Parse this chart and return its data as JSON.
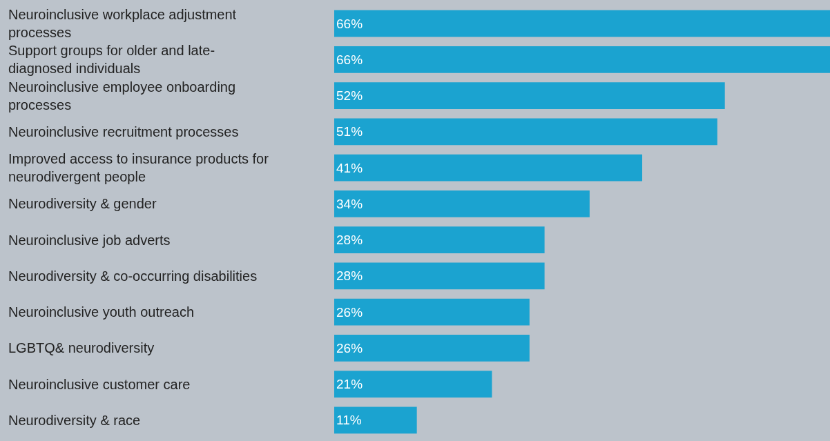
{
  "chart_data": {
    "type": "bar",
    "orientation": "horizontal",
    "categories": [
      "Neuroinclusive workplace adjustment processes",
      "Support groups for older and late-diagnosed individuals",
      "Neuroinclusive employee onboarding processes",
      "Neuroinclusive recruitment processes",
      "Improved access to insurance products for neurodivergent people",
      "Neurodiversity & gender",
      "Neuroinclusive job adverts",
      "Neurodiversity & co-occurring disabilities",
      "Neuroinclusive youth outreach",
      "LGBTQ& neurodiversity",
      "Neuroinclusive customer care",
      "Neurodiversity & race"
    ],
    "values": [
      66,
      66,
      52,
      51,
      41,
      34,
      28,
      28,
      26,
      26,
      21,
      11
    ],
    "value_labels": [
      "66%",
      "66%",
      "52%",
      "51%",
      "41%",
      "34%",
      "28%",
      "28%",
      "26%",
      "26%",
      "21%",
      "11%"
    ],
    "color": "#1ba3d0",
    "xlim": [
      0,
      66
    ],
    "tick_labels": "y",
    "grid": false,
    "legend": false
  }
}
